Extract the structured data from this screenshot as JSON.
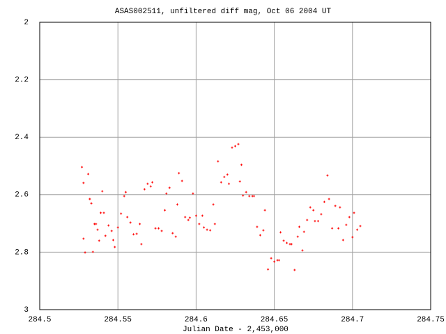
{
  "chart_data": {
    "type": "scatter",
    "title": "ASAS002511, unfiltered diff mag, Oct 06 2004 UT",
    "x_label": "Julian Date - 2,453,000",
    "color": "#ff0000",
    "grid": true,
    "y_inverted": true,
    "xlim": [
      284.5,
      284.75
    ],
    "xticks": [
      284.5,
      284.55,
      284.6,
      284.65,
      284.7,
      284.75
    ],
    "ylim": [
      2,
      3
    ],
    "yticks": [
      2,
      2.2,
      2.4,
      2.6,
      2.8,
      3
    ],
    "x": [
      284.527,
      284.528,
      284.528,
      284.529,
      284.531,
      284.532,
      284.532,
      284.533,
      284.534,
      284.535,
      284.536,
      284.537,
      284.538,
      284.539,
      284.54,
      284.541,
      284.542,
      284.544,
      284.546,
      284.547,
      284.548,
      284.55,
      284.552,
      284.554,
      284.555,
      284.556,
      284.558,
      284.56,
      284.562,
      284.564,
      284.565,
      284.567,
      284.569,
      284.571,
      284.572,
      284.574,
      284.576,
      284.578,
      284.58,
      284.581,
      284.583,
      284.585,
      284.587,
      284.588,
      284.589,
      284.591,
      284.593,
      284.595,
      284.596,
      284.598,
      284.6,
      284.602,
      284.604,
      284.605,
      284.607,
      284.609,
      284.611,
      284.612,
      284.614,
      284.616,
      284.618,
      284.62,
      284.621,
      284.623,
      284.625,
      284.627,
      284.628,
      284.629,
      284.63,
      284.632,
      284.634,
      284.636,
      284.637,
      284.639,
      284.641,
      284.643,
      284.644,
      284.646,
      284.648,
      284.65,
      284.652,
      284.653,
      284.654,
      284.656,
      284.658,
      284.66,
      284.661,
      284.663,
      284.665,
      284.666,
      284.668,
      284.669,
      284.671,
      284.673,
      284.675,
      284.676,
      284.678,
      284.68,
      284.682,
      284.684,
      284.685,
      284.687,
      284.689,
      284.691,
      284.692,
      284.694,
      284.696,
      284.698,
      284.7,
      284.701,
      284.703,
      284.705
    ],
    "values": [
      2.504,
      2.559,
      2.753,
      2.801,
      2.528,
      2.615,
      2.615,
      2.63,
      2.799,
      2.702,
      2.702,
      2.722,
      2.76,
      2.663,
      2.588,
      2.663,
      2.743,
      2.707,
      2.726,
      2.758,
      2.782,
      2.714,
      2.666,
      2.605,
      2.591,
      2.678,
      2.697,
      2.738,
      2.736,
      2.702,
      2.772,
      2.581,
      2.562,
      2.571,
      2.557,
      2.717,
      2.717,
      2.726,
      2.654,
      2.596,
      2.576,
      2.734,
      2.746,
      2.634,
      2.525,
      2.552,
      2.678,
      2.688,
      2.68,
      2.596,
      2.673,
      2.702,
      2.673,
      2.714,
      2.722,
      2.724,
      2.634,
      2.702,
      2.484,
      2.557,
      2.538,
      2.53,
      2.562,
      2.436,
      2.431,
      2.424,
      2.554,
      2.496,
      2.603,
      2.591,
      2.605,
      2.605,
      2.605,
      2.712,
      2.741,
      2.724,
      2.654,
      2.86,
      2.821,
      2.833,
      2.828,
      2.828,
      2.731,
      2.76,
      2.768,
      2.772,
      2.772,
      2.862,
      2.746,
      2.712,
      2.794,
      2.729,
      2.688,
      2.644,
      2.654,
      2.692,
      2.692,
      2.668,
      2.625,
      2.533,
      2.615,
      2.717,
      2.639,
      2.717,
      2.644,
      2.758,
      2.705,
      2.678,
      2.748,
      2.663,
      2.722,
      2.709
    ]
  }
}
